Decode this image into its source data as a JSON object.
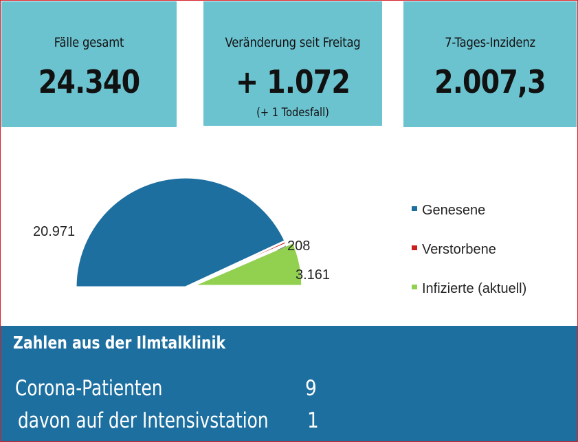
{
  "cards": [
    {
      "label": "Fälle gesamt",
      "value": "24.340",
      "note": ""
    },
    {
      "label": "Veränderung seit Freitag",
      "value": "+ 1.072",
      "note": "(+ 1 Todesfall)"
    },
    {
      "label": "7-Tages-Inzidenz",
      "value": "2.007,3",
      "note": ""
    }
  ],
  "chart_data": {
    "type": "pie",
    "variant": "half-pie",
    "title": "",
    "categories": [
      "Genesene",
      "Verstorbene",
      "Infizierte (aktuell)"
    ],
    "values": [
      20971,
      208,
      3161
    ],
    "value_labels": [
      "20.971",
      "208",
      "3.161"
    ],
    "colors": [
      "#1d6fa0",
      "#c9211e",
      "#92d050"
    ],
    "legend_position": "right"
  },
  "bottom": {
    "title": "Zahlen aus der Ilmtalklinik",
    "rows": [
      {
        "label": "Corona-Patienten",
        "value": "9"
      },
      {
        "label": "davon auf der Intensivstation",
        "value": "1"
      }
    ]
  },
  "colors": {
    "card_bg": "#6cc3d0",
    "bottom_bg": "#1d6fa0",
    "border": "#d6202a"
  }
}
